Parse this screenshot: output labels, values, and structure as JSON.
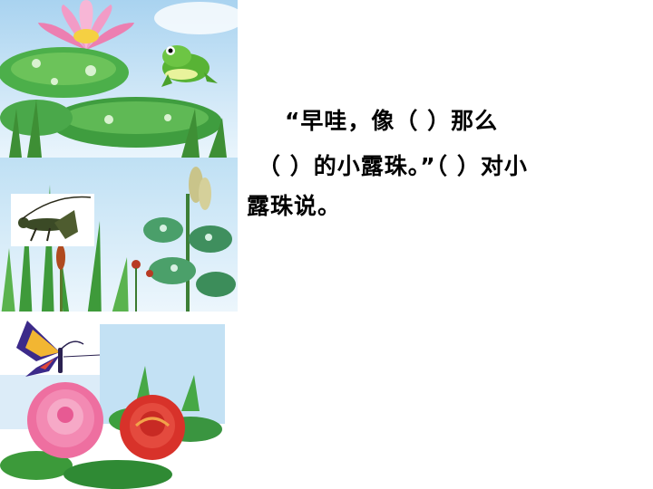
{
  "slide": {
    "lines": [
      "“早哇，像（    ）那么",
      "（  ）的小露珠。”（  ）对小",
      "露珠说。"
    ]
  },
  "illustrations": [
    {
      "scene": "lotus-pond-with-frog"
    },
    {
      "scene": "grasshopper-in-grass-with-plants"
    },
    {
      "scene": "butterfly-over-peony-flowers"
    }
  ],
  "colors": {
    "sky": "#b9dcf2",
    "leaf": "#4aa84a",
    "lotus_pink": "#ef7db5",
    "rose_red": "#d8322a",
    "peony_pink": "#ee6fa0",
    "frog_green": "#58b335"
  }
}
